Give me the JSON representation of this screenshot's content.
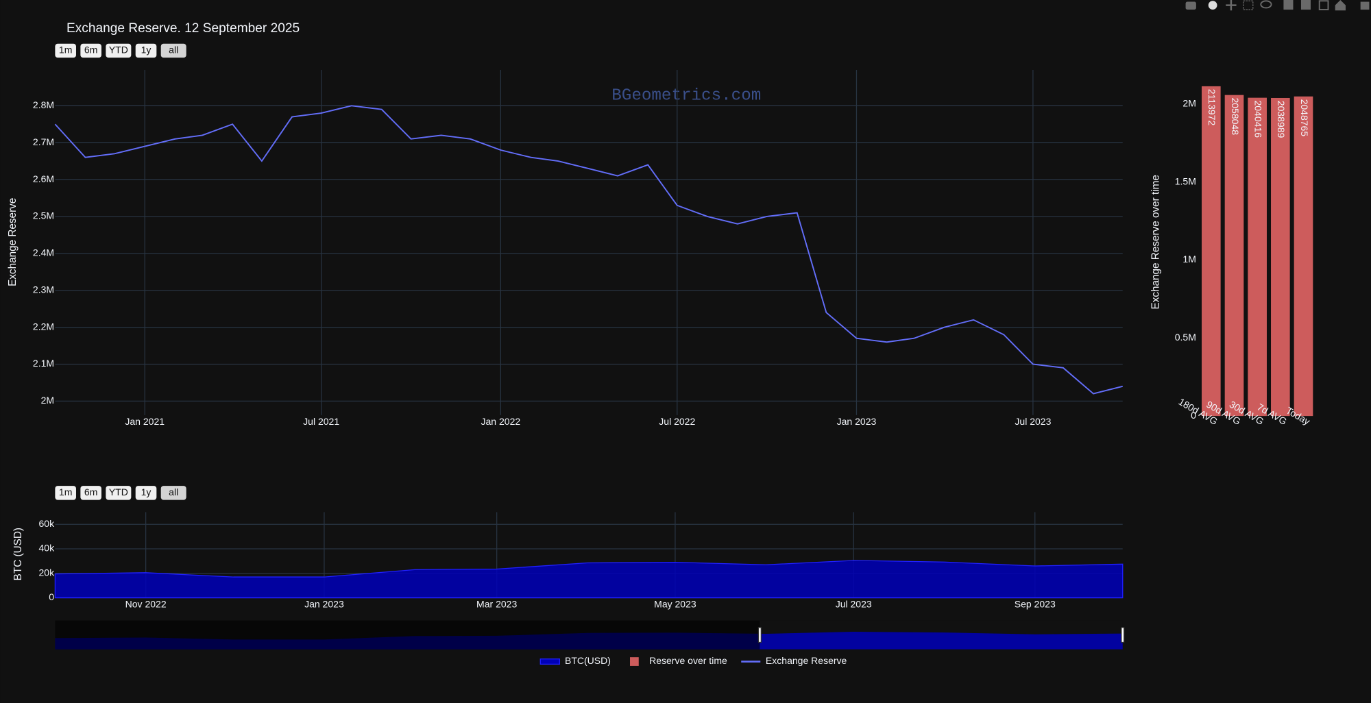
{
  "chart_data": [
    {
      "type": "line",
      "title": "Exchange Reserve. 12 September 2025",
      "y_label": "Exchange Reserve",
      "range_buttons": [
        "1m",
        "6m",
        "YTD",
        "1y",
        "all"
      ],
      "watermark": "BGeometrics.com",
      "x": [
        "2020-10",
        "2020-11",
        "2020-12",
        "2021-01",
        "2021-02",
        "2021-03",
        "2021-04",
        "2021-05",
        "2021-06",
        "2021-07",
        "2021-08",
        "2021-09",
        "2021-10",
        "2021-11",
        "2021-12",
        "2022-01",
        "2022-02",
        "2022-03",
        "2022-04",
        "2022-05",
        "2022-06",
        "2022-07",
        "2022-08",
        "2022-09",
        "2022-10",
        "2022-11",
        "2022-12",
        "2023-01",
        "2023-02",
        "2023-03",
        "2023-04",
        "2023-05",
        "2023-06",
        "2023-07",
        "2023-08",
        "2023-09",
        "2023-10"
      ],
      "series": [
        {
          "name": "Exchange Reserve",
          "color": "#636efa",
          "values": [
            2750000,
            2660000,
            2670000,
            2690000,
            2710000,
            2720000,
            2750000,
            2650000,
            2770000,
            2780000,
            2800000,
            2790000,
            2710000,
            2720000,
            2710000,
            2680000,
            2660000,
            2650000,
            2630000,
            2610000,
            2640000,
            2530000,
            2500000,
            2480000,
            2500000,
            2510000,
            2240000,
            2170000,
            2160000,
            2170000,
            2200000,
            2220000,
            2180000,
            2100000,
            2090000,
            2020000,
            2040000
          ]
        }
      ],
      "xlim": [
        "2020-10",
        "2023-10"
      ],
      "xticks": [
        {
          "value": "2021-01",
          "label": "Jan 2021"
        },
        {
          "value": "2021-07",
          "label": "Jul 2021"
        },
        {
          "value": "2022-01",
          "label": "Jan 2022"
        },
        {
          "value": "2022-07",
          "label": "Jul 2022"
        },
        {
          "value": "2023-01",
          "label": "Jan 2023"
        },
        {
          "value": "2023-07",
          "label": "Jul 2023"
        }
      ],
      "ylim": [
        1962000,
        2897000
      ],
      "yticks": [
        {
          "value": 2000000,
          "label": "2M"
        },
        {
          "value": 2100000,
          "label": "2.1M"
        },
        {
          "value": 2200000,
          "label": "2.2M"
        },
        {
          "value": 2300000,
          "label": "2.3M"
        },
        {
          "value": 2400000,
          "label": "2.4M"
        },
        {
          "value": 2500000,
          "label": "2.5M"
        },
        {
          "value": 2600000,
          "label": "2.6M"
        },
        {
          "value": 2700000,
          "label": "2.7M"
        },
        {
          "value": 2800000,
          "label": "2.8M"
        }
      ],
      "grid": true,
      "legend": "bottom"
    },
    {
      "type": "bar",
      "y_label": "Exchange Reserve over time",
      "categories": [
        "180d AVG",
        "90d AVG",
        "30d AVG",
        "7d AVG",
        "Today"
      ],
      "series": [
        {
          "name": "Reserve over time",
          "color": "#cd5c5c",
          "values": [
            2113972,
            2058048,
            2040416,
            2038989,
            2048765
          ]
        }
      ],
      "ylim": [
        0,
        2174000
      ],
      "yticks": [
        0,
        {
          "value": 500000,
          "label": "0.5M"
        },
        {
          "value": 1000000,
          "label": "1M"
        },
        {
          "value": 1500000,
          "label": "1.5M"
        },
        {
          "value": 2000000,
          "label": "2M"
        }
      ],
      "grid": false
    },
    {
      "type": "area",
      "y_label": "BTC (USD)",
      "range_buttons": [
        "1m",
        "6m",
        "YTD",
        "1y",
        "all"
      ],
      "x": [
        "2022-10",
        "2022-11",
        "2022-12",
        "2023-01",
        "2023-02",
        "2023-03",
        "2023-04",
        "2023-05",
        "2023-06",
        "2023-07",
        "2023-08",
        "2023-09",
        "2023-10"
      ],
      "series": [
        {
          "name": "BTC(USD)",
          "color": "#0000b8",
          "values": [
            19500,
            20500,
            17000,
            17000,
            23000,
            23500,
            28500,
            29000,
            27000,
            30500,
            29200,
            26000,
            27500
          ]
        }
      ],
      "xlim": [
        "2022-10",
        "2023-10"
      ],
      "xticks": [
        {
          "value": "2022-11",
          "label": "Nov 2022"
        },
        {
          "value": "2023-01",
          "label": "Jan 2023"
        },
        {
          "value": "2023-03",
          "label": "Mar 2023"
        },
        {
          "value": "2023-05",
          "label": "May 2023"
        },
        {
          "value": "2023-07",
          "label": "Jul 2023"
        },
        {
          "value": "2023-09",
          "label": "Sep 2023"
        }
      ],
      "ylim": [
        0,
        70000
      ],
      "yticks": [
        0,
        {
          "value": 20000,
          "label": "20k"
        },
        {
          "value": 40000,
          "label": "40k"
        },
        {
          "value": 60000,
          "label": "60k"
        }
      ],
      "grid": true
    }
  ]
}
